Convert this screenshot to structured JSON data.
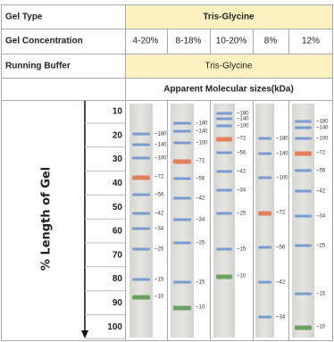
{
  "table": {
    "rows": [
      [
        "Gel Type",
        "Tris-Glycine"
      ],
      [
        "Gel Concentration",
        "4-20%",
        "8-18%",
        "10-20%",
        "8%",
        "12%"
      ],
      [
        "Running Buffer",
        "Tris-Glycine"
      ]
    ],
    "molecular_sizes_header": "Apparent Molecular sizes(kDa)"
  },
  "ruler": {
    "label": "% Length of Gel",
    "ticks": [
      "10",
      "20",
      "30",
      "40",
      "50",
      "60",
      "70",
      "80",
      "90",
      "100"
    ]
  },
  "lanes": [
    {
      "bands": [
        "~180",
        "~140",
        "~100",
        "~72",
        "~56",
        "~42",
        "~34",
        "~25",
        "~15",
        "~10"
      ]
    },
    {
      "bands": [
        "~180",
        "~140",
        "~100",
        "~72",
        "~56",
        "~42",
        "~34",
        "~25",
        "~15",
        "~10"
      ]
    },
    {
      "bands": [
        "~180",
        "~140",
        "~100",
        "~72",
        "~56",
        "~42",
        "~34",
        "~25",
        "~15",
        "~10"
      ]
    },
    {
      "bands": [
        "~180",
        "~140",
        "~100",
        "~72",
        "~56",
        "~42",
        "~34"
      ]
    },
    {
      "bands": [
        "~180",
        "~140",
        "~100",
        "~72",
        "~56",
        "~42",
        "~34",
        "~25",
        "~15",
        "~10"
      ]
    }
  ]
}
